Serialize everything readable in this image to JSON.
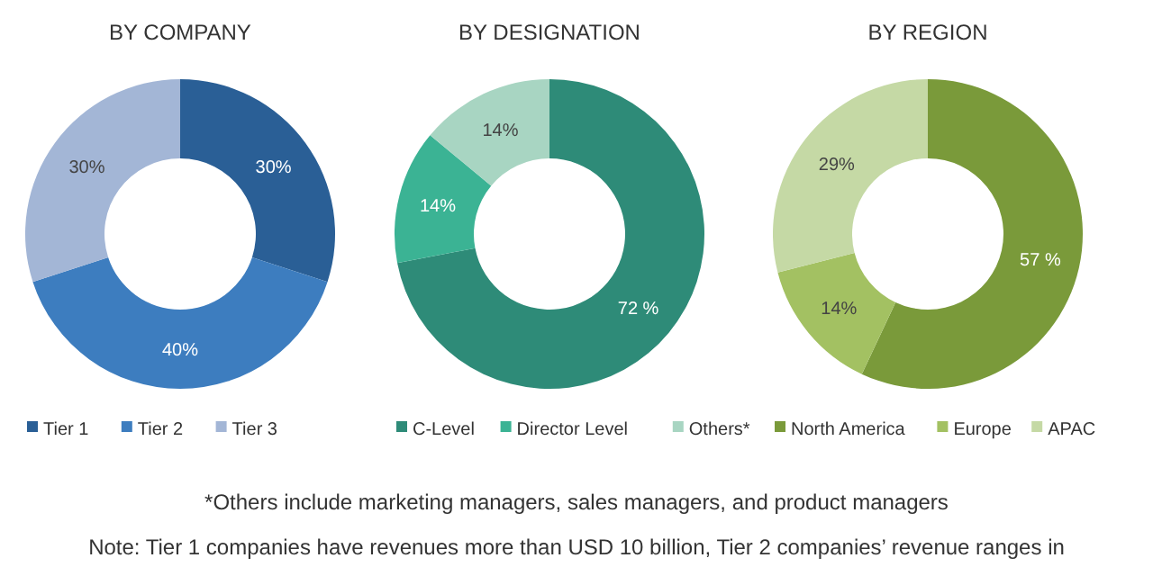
{
  "chart_data": [
    {
      "type": "donut",
      "title": "BY COMPANY",
      "categories": [
        "Tier 1",
        "Tier 2",
        "Tier 3"
      ],
      "values": [
        30,
        40,
        30
      ],
      "value_labels": [
        "30%",
        "40%",
        "30%"
      ],
      "colors": [
        "#2a5f96",
        "#3d7dbf",
        "#a3b6d6"
      ],
      "legend": "bottom",
      "annotations": [
        "*Others include marketing managers, sales managers, and product managers",
        "Note: Tier 1 companies have revenues more than USD 10 billion, Tier 2 companies’ revenue ranges in"
      ]
    },
    {
      "type": "donut",
      "title": "BY DESIGNATION",
      "categories": [
        "C-Level",
        "Director Level",
        "Others*"
      ],
      "values": [
        72,
        14,
        14
      ],
      "value_labels": [
        "72 %",
        "14%",
        "14%"
      ],
      "colors": [
        "#2e8b78",
        "#3bb394",
        "#a8d5c2"
      ],
      "legend": "bottom"
    },
    {
      "type": "donut",
      "title": "BY REGION",
      "categories": [
        "North America",
        "Europe",
        "APAC"
      ],
      "values": [
        57,
        14,
        29
      ],
      "value_labels": [
        "57 %",
        "14%",
        "29%"
      ],
      "colors": [
        "#7a9a3a",
        "#a3c162",
        "#c5d9a5"
      ],
      "legend": "bottom"
    }
  ]
}
